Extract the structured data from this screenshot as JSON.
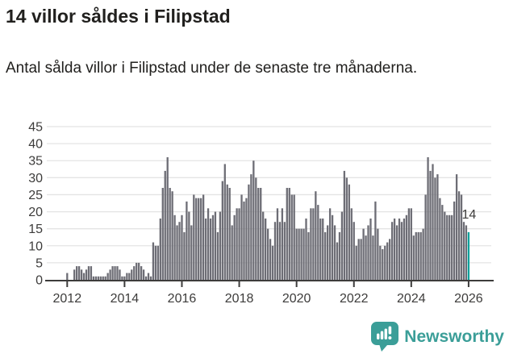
{
  "header": {
    "title": "14 villor såldes i Filipstad",
    "subtitle": "Antal sålda villor i Filipstad under de senaste tre månaderna."
  },
  "chart_data": {
    "type": "bar",
    "title": "14 villor såldes i Filipstad",
    "xlabel": "",
    "ylabel": "",
    "x_start": "2012-01",
    "x_end": "2026-01",
    "x_frequency": "monthly",
    "x_tick_labels": [
      "2012",
      "2014",
      "2016",
      "2018",
      "2020",
      "2022",
      "2024",
      "2026"
    ],
    "y_tick_values": [
      0,
      5,
      10,
      15,
      20,
      25,
      30,
      35,
      40,
      45
    ],
    "ylim": [
      0,
      45
    ],
    "grid": true,
    "legend": false,
    "bar_color": "#6d6d75",
    "values": [
      2,
      0,
      0,
      3,
      4,
      4,
      3,
      2,
      3,
      4,
      4,
      1,
      1,
      1,
      1,
      1,
      1,
      2,
      3,
      4,
      4,
      4,
      3,
      1,
      1,
      2,
      2,
      3,
      4,
      5,
      5,
      4,
      3,
      1,
      2,
      1,
      11,
      10,
      10,
      18,
      27,
      32,
      36,
      27,
      26,
      19,
      16,
      17,
      19,
      14,
      23,
      20,
      16,
      25,
      24,
      24,
      24,
      25,
      18,
      21,
      18,
      19,
      20,
      14,
      20,
      29,
      34,
      28,
      27,
      16,
      19,
      21,
      21,
      25,
      23,
      24,
      28,
      31,
      35,
      30,
      27,
      27,
      20,
      18,
      15,
      12,
      10,
      17,
      21,
      17,
      21,
      17,
      27,
      27,
      25,
      25,
      15,
      15,
      15,
      15,
      18,
      14,
      21,
      21,
      26,
      22,
      18,
      18,
      14,
      16,
      21,
      19,
      16,
      11,
      14,
      20,
      32,
      30,
      28,
      21,
      17,
      10,
      12,
      12,
      15,
      13,
      16,
      18,
      13,
      23,
      15,
      10,
      9,
      10,
      11,
      12,
      17,
      18,
      16,
      18,
      17,
      18,
      19,
      21,
      21,
      13,
      14,
      14,
      14,
      15,
      25,
      36,
      32,
      34,
      30,
      31,
      24,
      22,
      20,
      19,
      19,
      19,
      23,
      31,
      26,
      25,
      17,
      16,
      14
    ],
    "highlight": {
      "index": 168,
      "value": 14,
      "label": "14",
      "color": "#0ba19b"
    }
  },
  "footer": {
    "brand": "Newsworthy",
    "brand_color": "#3b9e98",
    "logo_icon": "bar-chart-speech-bubble-icon"
  }
}
